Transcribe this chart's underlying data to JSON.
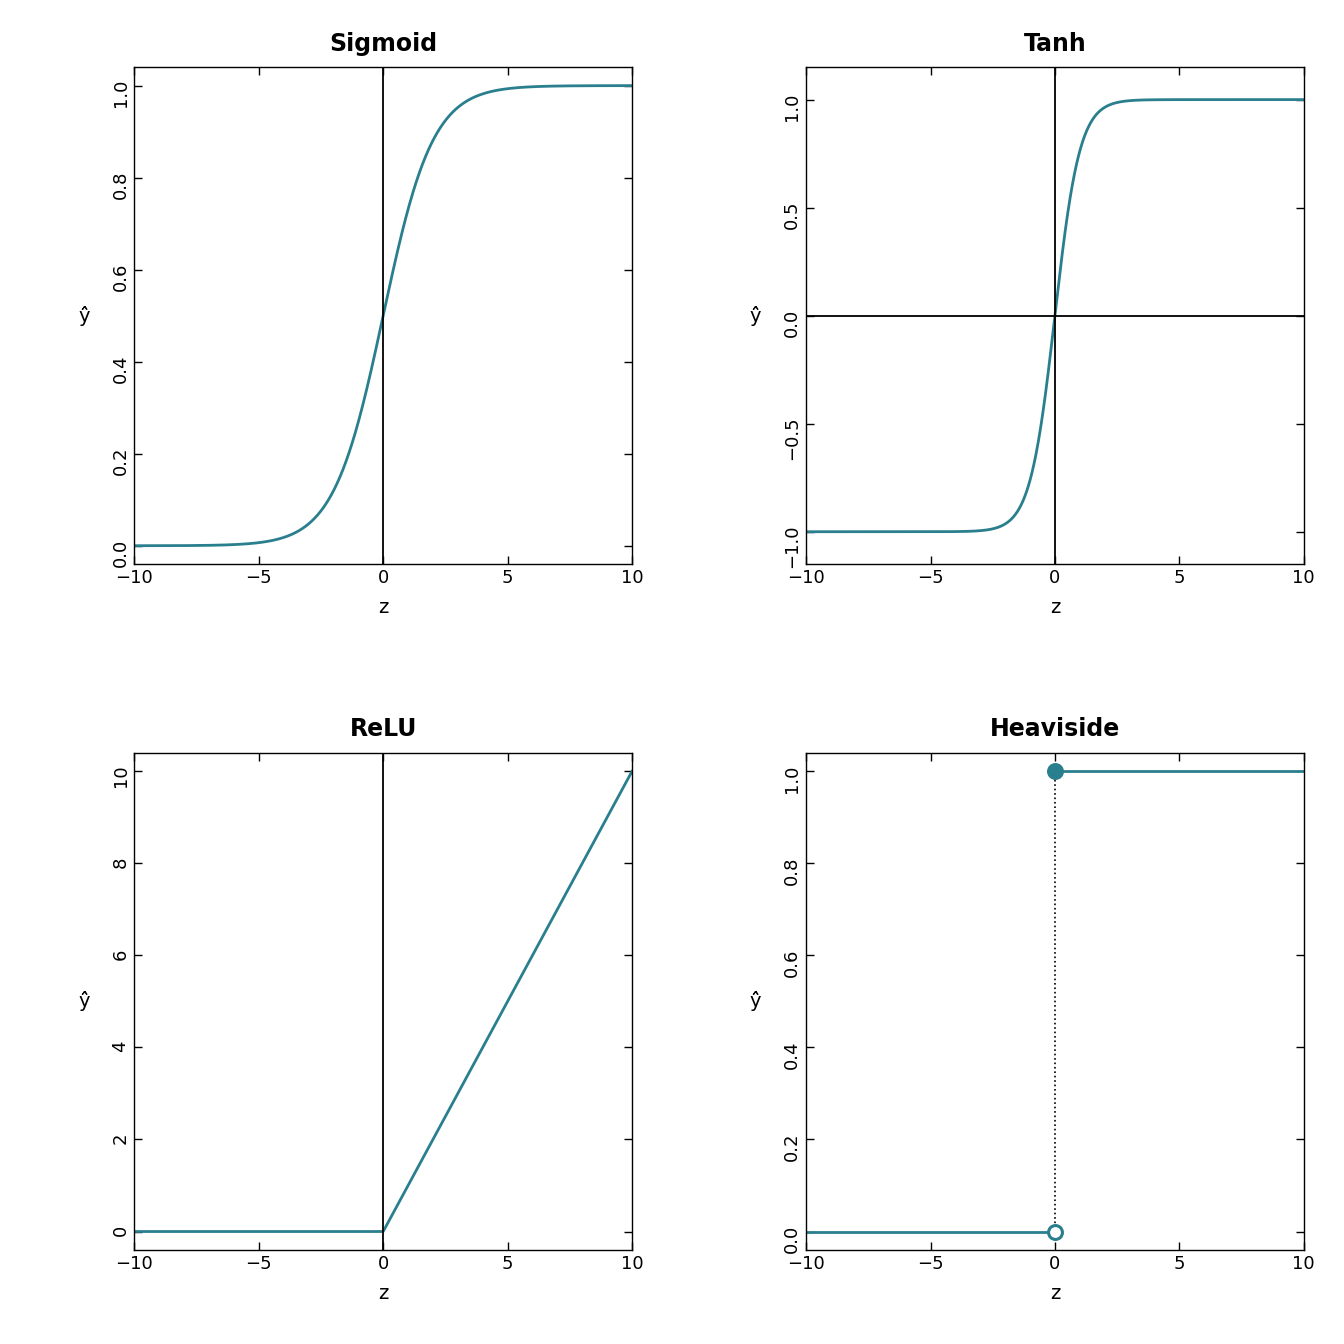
{
  "titles": [
    "Sigmoid",
    "Tanh",
    "ReLU",
    "Heaviside"
  ],
  "line_color": "#2a7f8e",
  "background_color": "#ffffff",
  "xlabel": "z",
  "ylabel": "ŷ̂",
  "xlim": [
    -10,
    10
  ],
  "sigmoid_ylim": [
    -0.04,
    1.04
  ],
  "tanh_ylim": [
    -1.15,
    1.15
  ],
  "relu_ylim": [
    -0.4,
    10.4
  ],
  "heaviside_ylim": [
    -0.04,
    1.04
  ],
  "sigmoid_yticks": [
    0.0,
    0.2,
    0.4,
    0.6,
    0.8,
    1.0
  ],
  "tanh_yticks": [
    -1.0,
    -0.5,
    0.0,
    0.5,
    1.0
  ],
  "relu_yticks": [
    0,
    2,
    4,
    6,
    8,
    10
  ],
  "heaviside_yticks": [
    0.0,
    0.2,
    0.4,
    0.6,
    0.8,
    1.0
  ],
  "xticks": [
    -10,
    -5,
    0,
    5,
    10
  ],
  "title_fontsize": 17,
  "axis_label_fontsize": 14,
  "tick_fontsize": 13,
  "line_width": 2.0,
  "dot_size_filled": 100,
  "dot_size_open": 100
}
